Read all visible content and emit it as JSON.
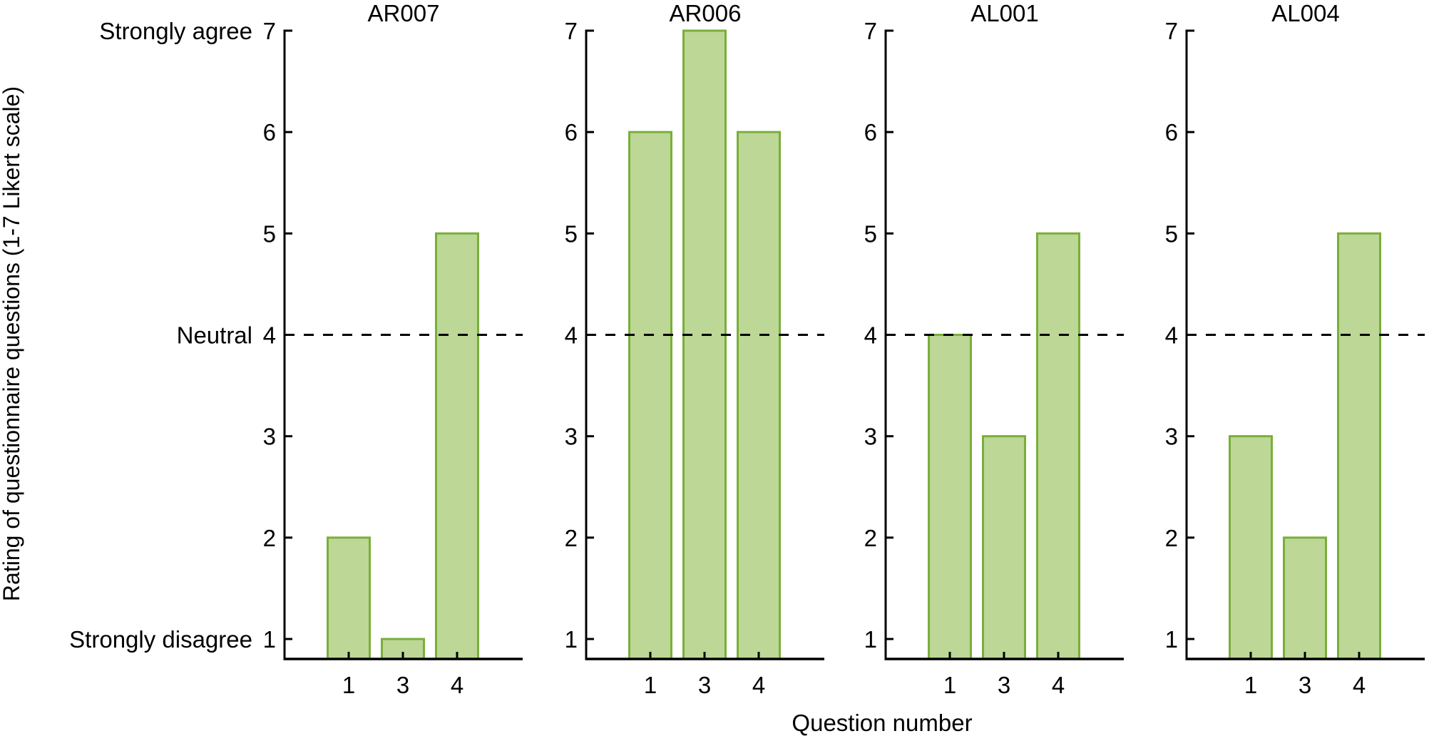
{
  "chart_data": {
    "type": "bar",
    "layout": "small-multiples",
    "ylabel": "Rating of questionnaire questions (1-7 Likert scale)",
    "xlabel": "Question number",
    "ylim": [
      1,
      7
    ],
    "yticks": [
      1,
      2,
      3,
      4,
      5,
      6,
      7
    ],
    "ytick_annotations": [
      {
        "value": 7,
        "label": "Strongly agree"
      },
      {
        "value": 4,
        "label": "Neutral"
      },
      {
        "value": 1,
        "label": "Strongly disagree"
      }
    ],
    "reference_line": {
      "value": 4,
      "style": "dashed",
      "color": "#000000"
    },
    "categories": [
      "1",
      "3",
      "4"
    ],
    "grid": false,
    "legend": null,
    "colors": {
      "bar_fill": "#bdd796",
      "bar_edge": "#7aae3a",
      "axis": "#000000"
    },
    "panels": [
      {
        "title": "AR007",
        "values": [
          2,
          1,
          5
        ]
      },
      {
        "title": "AR006",
        "values": [
          6,
          7,
          6
        ]
      },
      {
        "title": "AL001",
        "values": [
          4,
          3,
          5
        ]
      },
      {
        "title": "AL004",
        "values": [
          3,
          2,
          5
        ]
      }
    ]
  }
}
